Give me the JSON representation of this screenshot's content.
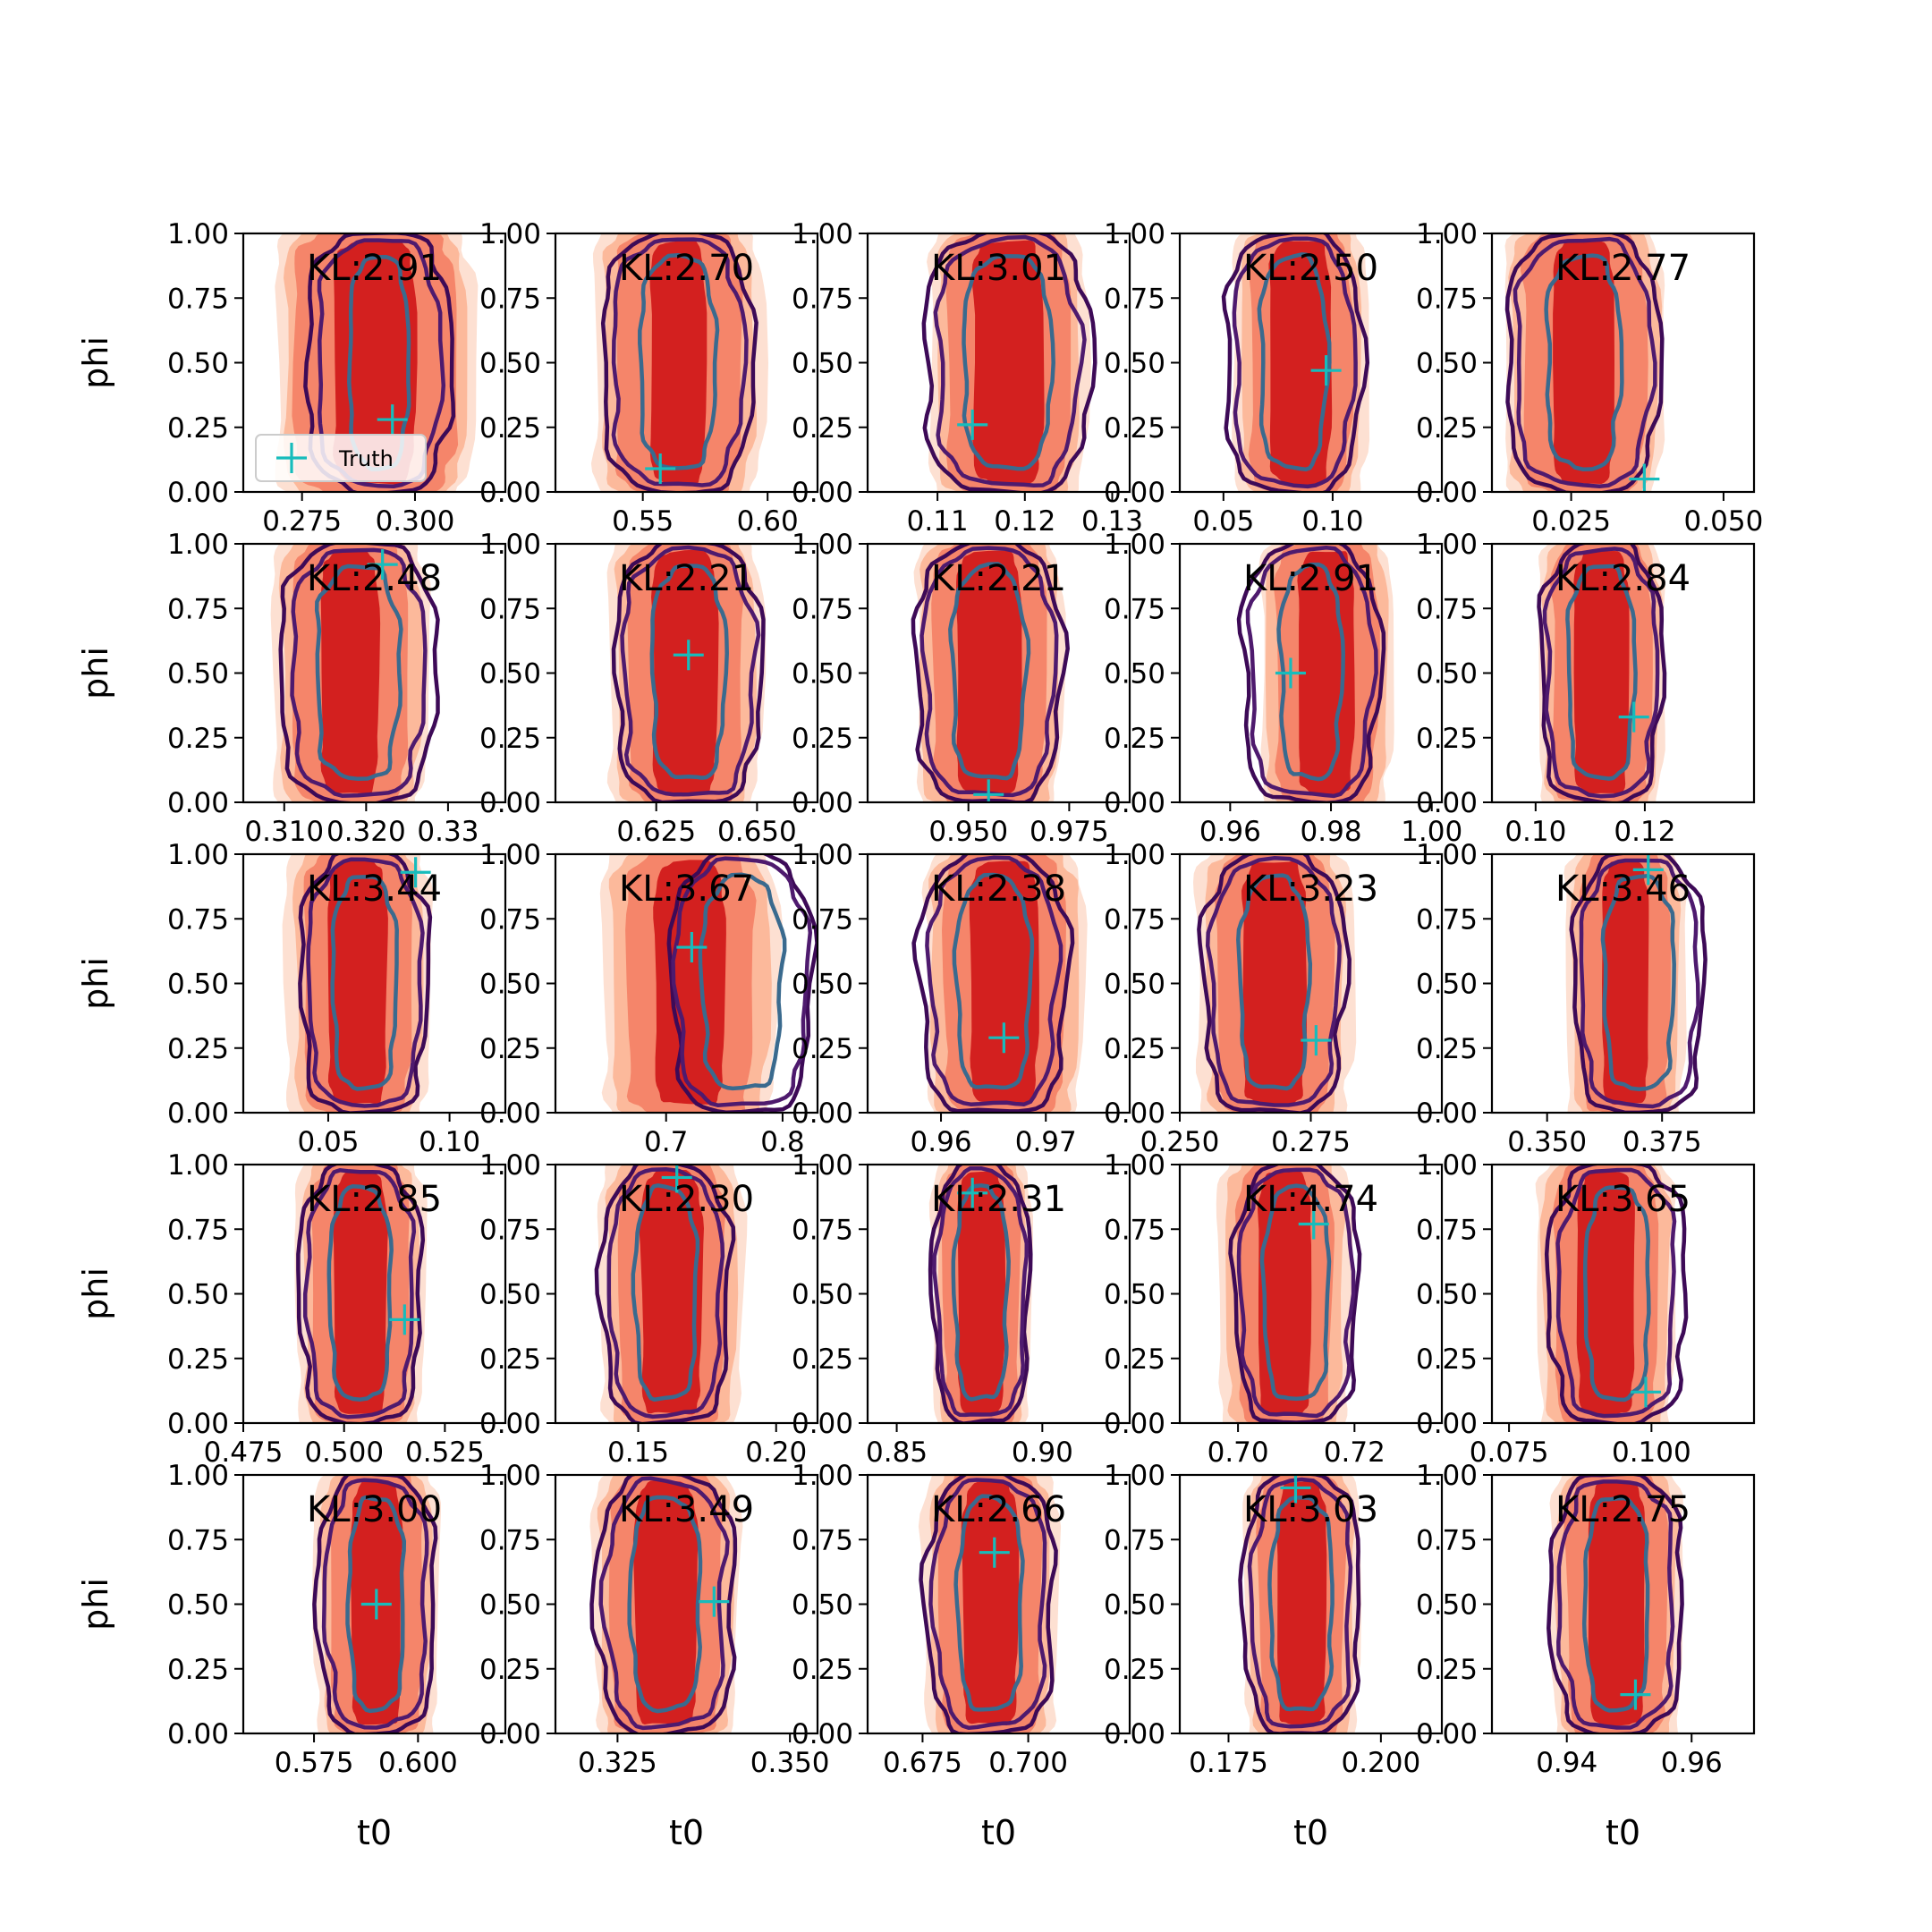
{
  "figure": {
    "legend_label": "Truth"
  },
  "colors": {
    "fill_outer": "#fde0d2",
    "fill_mid2": "#fcb99b",
    "fill_mid1": "#f5856a",
    "fill_inner": "#d3201f",
    "contour_outer": "#3d0a57",
    "contour_mid": "#4e1a6e",
    "contour_inner": "#3a6a8e",
    "truth_marker": "#17bcbc"
  },
  "chart_data": {
    "type": "kde-contour-grid",
    "rows": 5,
    "cols": 5,
    "xlabel": "t0",
    "ylabel": "phi",
    "ylim": [
      0,
      1
    ],
    "yticks": [
      "0.00",
      "0.25",
      "0.50",
      "0.75",
      "1.00"
    ],
    "legend": {
      "label": "Truth",
      "panel": 0,
      "placement": "lower-left"
    },
    "panels": [
      {
        "kl": "KL:2.91",
        "xlim": [
          0.262,
          0.32
        ],
        "xticks": [
          0.275,
          0.3
        ],
        "xtick_labels": [
          "0.275",
          "0.300"
        ],
        "pred_center": [
          0.291,
          0.5
        ],
        "pred_width": [
          0.018,
          0.036,
          0.04,
          0.044
        ],
        "true_center": [
          0.292,
          0.5
        ],
        "true_width": [
          0.013,
          0.027,
          0.032
        ],
        "truth": [
          0.295,
          0.28
        ]
      },
      {
        "kl": "KL:2.70",
        "xlim": [
          0.515,
          0.62
        ],
        "xticks": [
          0.55,
          0.6
        ],
        "xtick_labels": [
          "0.55",
          "0.60"
        ],
        "pred_center": [
          0.564,
          0.5
        ],
        "pred_width": [
          0.022,
          0.05,
          0.06,
          0.068
        ],
        "true_center": [
          0.564,
          0.5
        ],
        "true_width": [
          0.03,
          0.052,
          0.06
        ],
        "truth": [
          0.557,
          0.09
        ]
      },
      {
        "kl": "KL:3.01",
        "xlim": [
          0.102,
          0.132
        ],
        "xticks": [
          0.11,
          0.12,
          0.13
        ],
        "xtick_labels": [
          "0.11",
          "0.12",
          "0.13"
        ],
        "pred_center": [
          0.118,
          0.5
        ],
        "pred_width": [
          0.008,
          0.014,
          0.016,
          0.018
        ],
        "true_center": [
          0.118,
          0.5
        ],
        "true_width": [
          0.01,
          0.016,
          0.019
        ],
        "truth": [
          0.114,
          0.26
        ]
      },
      {
        "kl": "KL:2.50",
        "xlim": [
          0.03,
          0.15
        ],
        "xticks": [
          0.05,
          0.1
        ],
        "xtick_labels": [
          "0.05",
          "0.10"
        ],
        "pred_center": [
          0.085,
          0.5
        ],
        "pred_width": [
          0.028,
          0.046,
          0.054,
          0.062
        ],
        "true_center": [
          0.082,
          0.5
        ],
        "true_width": [
          0.03,
          0.054,
          0.062
        ],
        "truth": [
          0.097,
          0.47
        ]
      },
      {
        "kl": "KL:2.77",
        "xlim": [
          0.012,
          0.055
        ],
        "xticks": [
          0.025,
          0.05
        ],
        "xtick_labels": [
          "0.025",
          "0.050"
        ],
        "pred_center": [
          0.027,
          0.5
        ],
        "pred_width": [
          0.01,
          0.02,
          0.024,
          0.026
        ],
        "true_center": [
          0.027,
          0.5
        ],
        "true_width": [
          0.012,
          0.022,
          0.025
        ],
        "truth": [
          0.037,
          0.05
        ]
      },
      {
        "kl": "KL:2.48",
        "xlim": [
          0.305,
          0.337
        ],
        "xticks": [
          0.31,
          0.32,
          0.33
        ],
        "xtick_labels": [
          "0.310",
          "0.320",
          "0.33"
        ],
        "pred_center": [
          0.318,
          0.5
        ],
        "pred_width": [
          0.007,
          0.014,
          0.017,
          0.019
        ],
        "true_center": [
          0.319,
          0.5
        ],
        "true_width": [
          0.01,
          0.016,
          0.019
        ],
        "truth": [
          0.322,
          0.92
        ]
      },
      {
        "kl": "KL:2.21",
        "xlim": [
          0.6,
          0.665
        ],
        "xticks": [
          0.625,
          0.65
        ],
        "xtick_labels": [
          "0.625",
          "0.650"
        ],
        "pred_center": [
          0.632,
          0.5
        ],
        "pred_width": [
          0.016,
          0.028,
          0.034,
          0.038
        ],
        "true_center": [
          0.633,
          0.5
        ],
        "true_width": [
          0.018,
          0.032,
          0.036
        ],
        "truth": [
          0.633,
          0.57
        ]
      },
      {
        "kl": "KL:2.21",
        "xlim": [
          0.925,
          0.99
        ],
        "xticks": [
          0.95,
          0.975
        ],
        "xtick_labels": [
          "0.950",
          "0.975"
        ],
        "pred_center": [
          0.955,
          0.5
        ],
        "pred_width": [
          0.016,
          0.028,
          0.034,
          0.036
        ],
        "true_center": [
          0.955,
          0.5
        ],
        "true_width": [
          0.018,
          0.032,
          0.036
        ],
        "truth": [
          0.955,
          0.03
        ]
      },
      {
        "kl": "KL:2.91",
        "xlim": [
          0.95,
          1.002
        ],
        "xticks": [
          0.96,
          0.98,
          1.0
        ],
        "xtick_labels": [
          "0.96",
          "0.98",
          "1.00"
        ],
        "pred_center": [
          0.979,
          0.5
        ],
        "pred_width": [
          0.011,
          0.02,
          0.024,
          0.026
        ],
        "true_center": [
          0.976,
          0.5
        ],
        "true_width": [
          0.012,
          0.024,
          0.027
        ],
        "truth": [
          0.972,
          0.5
        ]
      },
      {
        "kl": "KL:2.84",
        "xlim": [
          0.092,
          0.14
        ],
        "xticks": [
          0.1,
          0.12
        ],
        "xtick_labels": [
          "0.10",
          "0.12"
        ],
        "pred_center": [
          0.112,
          0.5
        ],
        "pred_width": [
          0.01,
          0.018,
          0.021,
          0.023
        ],
        "true_center": [
          0.112,
          0.5
        ],
        "true_width": [
          0.012,
          0.02,
          0.022
        ],
        "truth": [
          0.118,
          0.33
        ]
      },
      {
        "kl": "KL:3.44",
        "xlim": [
          0.015,
          0.123
        ],
        "xticks": [
          0.05,
          0.1
        ],
        "xtick_labels": [
          "0.05",
          "0.10"
        ],
        "pred_center": [
          0.062,
          0.5
        ],
        "pred_width": [
          0.024,
          0.044,
          0.052,
          0.06
        ],
        "true_center": [
          0.065,
          0.5
        ],
        "true_width": [
          0.026,
          0.046,
          0.052
        ],
        "truth": [
          0.086,
          0.93
        ]
      },
      {
        "kl": "KL:3.67",
        "xlim": [
          0.605,
          0.83
        ],
        "xticks": [
          0.7,
          0.8
        ],
        "xtick_labels": [
          "0.7",
          "0.8"
        ],
        "pred_center": [
          0.72,
          0.5
        ],
        "pred_width": [
          0.06,
          0.108,
          0.134,
          0.15
        ],
        "true_center": [
          0.765,
          0.5
        ],
        "true_width": [
          0.068,
          0.112,
          0.12
        ],
        "truth": [
          0.722,
          0.64
        ]
      },
      {
        "kl": "KL:2.38",
        "xlim": [
          0.953,
          0.978
        ],
        "xticks": [
          0.96,
          0.97
        ],
        "xtick_labels": [
          "0.96",
          "0.97"
        ],
        "pred_center": [
          0.966,
          0.5
        ],
        "pred_width": [
          0.0065,
          0.0115,
          0.014,
          0.015
        ],
        "true_center": [
          0.965,
          0.5
        ],
        "true_width": [
          0.007,
          0.012,
          0.014
        ],
        "truth": [
          0.966,
          0.29
        ]
      },
      {
        "kl": "KL:3.23",
        "xlim": [
          0.25,
          0.3
        ],
        "xticks": [
          0.25,
          0.275
        ],
        "xtick_labels": [
          "0.250",
          "0.275"
        ],
        "pred_center": [
          0.268,
          0.5
        ],
        "pred_width": [
          0.012,
          0.022,
          0.026,
          0.03
        ],
        "true_center": [
          0.268,
          0.5
        ],
        "true_width": [
          0.013,
          0.024,
          0.027
        ],
        "truth": [
          0.276,
          0.28
        ]
      },
      {
        "kl": "KL:3.46",
        "xlim": [
          0.338,
          0.395
        ],
        "xticks": [
          0.35,
          0.375
        ],
        "xtick_labels": [
          "0.350",
          "0.375"
        ],
        "pred_center": [
          0.367,
          0.5
        ],
        "pred_width": [
          0.01,
          0.019,
          0.023,
          0.026
        ],
        "true_center": [
          0.37,
          0.5
        ],
        "true_width": [
          0.015,
          0.025,
          0.028
        ],
        "truth": [
          0.372,
          0.94
        ]
      },
      {
        "kl": "KL:2.85",
        "xlim": [
          0.475,
          0.54
        ],
        "xticks": [
          0.475,
          0.5,
          0.525
        ],
        "xtick_labels": [
          "0.475",
          "0.500",
          "0.525"
        ],
        "pred_center": [
          0.504,
          0.5
        ],
        "pred_width": [
          0.013,
          0.024,
          0.028,
          0.032
        ],
        "true_center": [
          0.504,
          0.5
        ],
        "true_width": [
          0.015,
          0.026,
          0.03
        ],
        "truth": [
          0.515,
          0.4
        ]
      },
      {
        "kl": "KL:2.30",
        "xlim": [
          0.12,
          0.215
        ],
        "xticks": [
          0.15,
          0.2
        ],
        "xtick_labels": [
          "0.15",
          "0.20"
        ],
        "pred_center": [
          0.162,
          0.5
        ],
        "pred_width": [
          0.022,
          0.038,
          0.046,
          0.052
        ],
        "true_center": [
          0.16,
          0.5
        ],
        "true_width": [
          0.022,
          0.04,
          0.046
        ],
        "truth": [
          0.164,
          0.95
        ]
      },
      {
        "kl": "KL:2.31",
        "xlim": [
          0.84,
          0.93
        ],
        "xticks": [
          0.85,
          0.9
        ],
        "xtick_labels": [
          "0.85",
          "0.90"
        ],
        "pred_center": [
          0.879,
          0.5
        ],
        "pred_width": [
          0.016,
          0.026,
          0.03,
          0.034
        ],
        "true_center": [
          0.879,
          0.5
        ],
        "true_width": [
          0.018,
          0.03,
          0.033
        ],
        "truth": [
          0.876,
          0.89
        ]
      },
      {
        "kl": "KL:4.74",
        "xlim": [
          0.69,
          0.735
        ],
        "xticks": [
          0.7,
          0.72
        ],
        "xtick_labels": [
          "0.70",
          "0.72"
        ],
        "pred_center": [
          0.708,
          0.5
        ],
        "pred_width": [
          0.009,
          0.016,
          0.02,
          0.023
        ],
        "true_center": [
          0.71,
          0.5
        ],
        "true_width": [
          0.011,
          0.019,
          0.021
        ],
        "truth": [
          0.713,
          0.77
        ]
      },
      {
        "kl": "KL:3.65",
        "xlim": [
          0.072,
          0.118
        ],
        "xticks": [
          0.075,
          0.1
        ],
        "xtick_labels": [
          "0.075",
          "0.100"
        ],
        "pred_center": [
          0.092,
          0.5
        ],
        "pred_width": [
          0.01,
          0.018,
          0.022,
          0.024
        ],
        "true_center": [
          0.094,
          0.5
        ],
        "true_width": [
          0.011,
          0.02,
          0.024
        ],
        "truth": [
          0.099,
          0.12
        ]
      },
      {
        "kl": "KL:3.00",
        "xlim": [
          0.558,
          0.621
        ],
        "xticks": [
          0.575,
          0.6
        ],
        "xtick_labels": [
          "0.575",
          "0.600"
        ],
        "pred_center": [
          0.59,
          0.5
        ],
        "pred_width": [
          0.012,
          0.022,
          0.026,
          0.03
        ],
        "true_center": [
          0.59,
          0.5
        ],
        "true_width": [
          0.013,
          0.024,
          0.028
        ],
        "truth": [
          0.59,
          0.5
        ]
      },
      {
        "kl": "KL:3.49",
        "xlim": [
          0.316,
          0.354
        ],
        "xticks": [
          0.325,
          0.35
        ],
        "xtick_labels": [
          "0.325",
          "0.350"
        ],
        "pred_center": [
          0.332,
          0.5
        ],
        "pred_width": [
          0.009,
          0.016,
          0.019,
          0.021
        ],
        "true_center": [
          0.332,
          0.5
        ],
        "true_width": [
          0.01,
          0.017,
          0.02
        ],
        "truth": [
          0.339,
          0.51
        ]
      },
      {
        "kl": "KL:2.66",
        "xlim": [
          0.662,
          0.724
        ],
        "xticks": [
          0.675,
          0.7
        ],
        "xtick_labels": [
          "0.675",
          "0.700"
        ],
        "pred_center": [
          0.691,
          0.5
        ],
        "pred_width": [
          0.013,
          0.024,
          0.028,
          0.032
        ],
        "true_center": [
          0.691,
          0.5
        ],
        "true_width": [
          0.015,
          0.026,
          0.03
        ],
        "truth": [
          0.692,
          0.7
        ]
      },
      {
        "kl": "KL:3.03",
        "xlim": [
          0.167,
          0.21
        ],
        "xticks": [
          0.175,
          0.2
        ],
        "xtick_labels": [
          "0.175",
          "0.200"
        ],
        "pred_center": [
          0.187,
          0.5
        ],
        "pred_width": [
          0.008,
          0.014,
          0.017,
          0.019
        ],
        "true_center": [
          0.187,
          0.5
        ],
        "true_width": [
          0.01,
          0.016,
          0.019
        ],
        "truth": [
          0.186,
          0.95
        ]
      },
      {
        "kl": "KL:2.75",
        "xlim": [
          0.928,
          0.97
        ],
        "xticks": [
          0.94,
          0.96
        ],
        "xtick_labels": [
          "0.94",
          "0.96"
        ],
        "pred_center": [
          0.948,
          0.5
        ],
        "pred_width": [
          0.009,
          0.016,
          0.019,
          0.021
        ],
        "true_center": [
          0.948,
          0.5
        ],
        "true_width": [
          0.01,
          0.018,
          0.021
        ],
        "truth": [
          0.951,
          0.15
        ]
      }
    ]
  }
}
